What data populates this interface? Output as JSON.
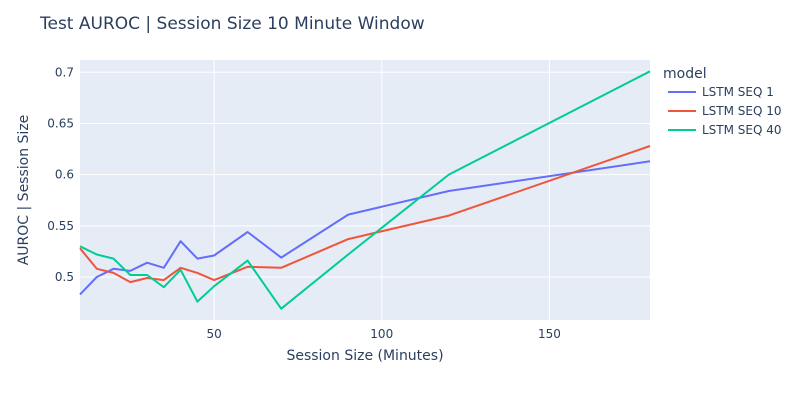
{
  "chart_data": {
    "type": "line",
    "title": "Test AUROC | Session Size 10 Minute Window",
    "xlabel": "Session Size (Minutes)",
    "ylabel": "AUROC | Session Size",
    "xlim": [
      10,
      180
    ],
    "ylim": [
      0.458,
      0.712
    ],
    "x_ticks": [
      50,
      100,
      150
    ],
    "y_ticks": [
      0.5,
      0.55,
      0.6,
      0.65,
      0.7
    ],
    "y_tick_labels": [
      "0.5",
      "0.55",
      "0.6",
      "0.65",
      "0.7"
    ],
    "grid": true,
    "legend": {
      "title": "model",
      "placement": "right"
    },
    "series": [
      {
        "name": "LSTM SEQ 1",
        "color": "#636efa",
        "x": [
          10,
          15,
          20,
          25,
          30,
          35,
          40,
          45,
          50,
          60,
          70,
          90,
          120,
          180
        ],
        "y": [
          0.483,
          0.5,
          0.508,
          0.506,
          0.514,
          0.509,
          0.535,
          0.518,
          0.521,
          0.544,
          0.519,
          0.561,
          0.584,
          0.613
        ]
      },
      {
        "name": "LSTM SEQ 10",
        "color": "#ef553b",
        "x": [
          10,
          15,
          20,
          25,
          30,
          35,
          40,
          45,
          50,
          60,
          70,
          90,
          120,
          180
        ],
        "y": [
          0.528,
          0.508,
          0.504,
          0.495,
          0.499,
          0.497,
          0.509,
          0.504,
          0.497,
          0.51,
          0.509,
          0.537,
          0.56,
          0.628
        ]
      },
      {
        "name": "LSTM SEQ 40",
        "color": "#00cc96",
        "x": [
          10,
          15,
          20,
          25,
          30,
          35,
          40,
          45,
          50,
          60,
          70,
          90,
          120,
          180
        ],
        "y": [
          0.53,
          0.522,
          0.518,
          0.502,
          0.502,
          0.49,
          0.507,
          0.476,
          0.491,
          0.516,
          0.469,
          0.522,
          0.6,
          0.701
        ]
      }
    ]
  }
}
